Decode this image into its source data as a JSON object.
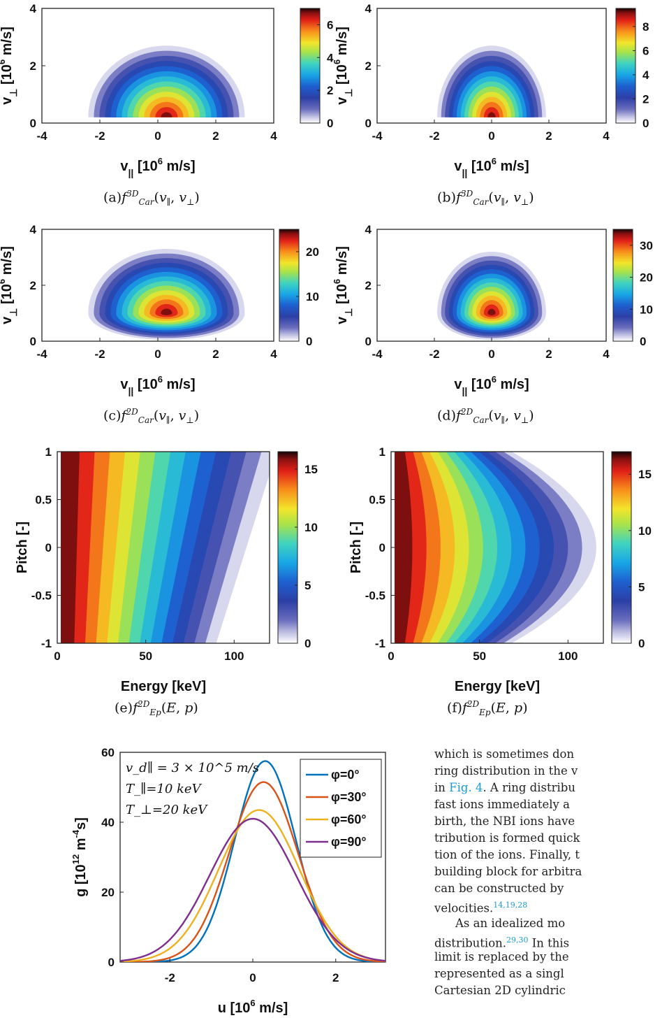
{
  "chart_data": [
    {
      "id": "a",
      "type": "heatmap",
      "caption": "(a)f_Car^3D(v_∥, v_⊥)",
      "xlabel": "v_|| [10^6 m/s]",
      "ylabel": "v_⊥ [10^6 m/s]",
      "xlim": [
        -4,
        4
      ],
      "ylim": [
        0,
        4
      ],
      "xticks": [
        "-4",
        "-2",
        "0",
        "2",
        "4"
      ],
      "yticks": [
        "0",
        "2",
        "4"
      ],
      "colorbar": {
        "ticks": [
          "0",
          "2",
          "4",
          "6"
        ],
        "range": [
          0,
          7
        ]
      },
      "shape": "semicircle",
      "peak": {
        "x": 0.3,
        "y": 0.2,
        "value": 7
      },
      "extent": {
        "left": -2.4,
        "right": 3.0,
        "top": 2.7
      }
    },
    {
      "id": "b",
      "type": "heatmap",
      "caption": "(b)f_Car^3D(v_∥, v_⊥)",
      "xlabel": "v_|| [10^6 m/s]",
      "ylabel": "v_⊥ [10^6 m/s]",
      "xlim": [
        -4,
        4
      ],
      "ylim": [
        0,
        4
      ],
      "xticks": [
        "-4",
        "-2",
        "0",
        "2",
        "4"
      ],
      "yticks": [
        "0",
        "2",
        "4"
      ],
      "colorbar": {
        "ticks": [
          "0",
          "2",
          "4",
          "6",
          "8"
        ],
        "range": [
          0,
          9.5
        ]
      },
      "shape": "semicircle",
      "peak": {
        "x": 0.0,
        "y": 0.2,
        "value": 9.5
      },
      "extent": {
        "left": -1.9,
        "right": 1.9,
        "top": 2.7
      }
    },
    {
      "id": "c",
      "type": "heatmap",
      "caption": "(c)f_Car^2D(v_∥, v_⊥)",
      "xlabel": "v_|| [10^6 m/s]",
      "ylabel": "v_⊥ [10^6 m/s]",
      "xlim": [
        -4,
        4
      ],
      "ylim": [
        0,
        4
      ],
      "xticks": [
        "-4",
        "-2",
        "0",
        "2",
        "4"
      ],
      "yticks": [
        "0",
        "2",
        "4"
      ],
      "colorbar": {
        "ticks": [
          "0",
          "10",
          "20"
        ],
        "range": [
          0,
          25
        ]
      },
      "shape": "dome",
      "peak": {
        "x": 0.3,
        "y": 1.0,
        "value": 25
      },
      "extent": {
        "left": -2.4,
        "right": 3.0,
        "top": 3.3
      }
    },
    {
      "id": "d",
      "type": "heatmap",
      "caption": "(d)f_Car^2D(v_∥, v_⊥)",
      "xlabel": "v_|| [10^6 m/s]",
      "ylabel": "v_⊥ [10^6 m/s]",
      "xlim": [
        -4,
        4
      ],
      "ylim": [
        0,
        4
      ],
      "xticks": [
        "-4",
        "-2",
        "0",
        "2",
        "4"
      ],
      "yticks": [
        "0",
        "2",
        "4"
      ],
      "colorbar": {
        "ticks": [
          "0",
          "10",
          "20",
          "30"
        ],
        "range": [
          0,
          35
        ]
      },
      "shape": "dome",
      "peak": {
        "x": 0.0,
        "y": 1.0,
        "value": 35
      },
      "extent": {
        "left": -1.9,
        "right": 1.9,
        "top": 3.2
      }
    },
    {
      "id": "e",
      "type": "heatmap",
      "caption": "(e)f_Ep^2D(E, p)",
      "xlabel": "Energy [keV]",
      "ylabel": "Pitch [-]",
      "xlim": [
        0,
        120
      ],
      "ylim": [
        -1,
        1
      ],
      "xticks": [
        "0",
        "50",
        "100"
      ],
      "yticks": [
        "-1",
        "-0.5",
        "0",
        "0.5",
        "1"
      ],
      "colorbar": {
        "ticks": [
          "0",
          "5",
          "10",
          "15"
        ],
        "range": [
          0,
          16.5
        ]
      },
      "shape": "energy-pitch-tilted",
      "peak": {
        "x": 14,
        "y": 1.0,
        "value": 16.5
      }
    },
    {
      "id": "f",
      "type": "heatmap",
      "caption": "(f)f_Ep^2D(E, p)",
      "xlabel": "Energy [keV]",
      "ylabel": "Pitch [-]",
      "xlim": [
        0,
        120
      ],
      "ylim": [
        -1,
        1
      ],
      "xticks": [
        "0",
        "50",
        "100"
      ],
      "yticks": [
        "-1",
        "-0.5",
        "0",
        "0.5",
        "1"
      ],
      "colorbar": {
        "ticks": [
          "0",
          "5",
          "10",
          "15"
        ],
        "range": [
          0,
          17
        ]
      },
      "shape": "energy-pitch-symmetric",
      "peak": {
        "x": 10,
        "y": 0.0,
        "value": 17
      }
    },
    {
      "id": "g",
      "type": "line",
      "xlabel": "u [10^6 m/s]",
      "ylabel": "g [10^12 m^-4 s]",
      "xlim": [
        -3.2,
        3.2
      ],
      "ylim": [
        0,
        60
      ],
      "xticks": [
        "-2",
        "0",
        "2"
      ],
      "yticks": [
        "0",
        "20",
        "40",
        "60"
      ],
      "annotations": [
        "v_d∥ = 3 × 10^5 m/s",
        "T_∥=10 keV",
        "T_⊥=20 keV"
      ],
      "legend_position": "top-right",
      "series": [
        {
          "name": "φ=0°",
          "color": "#0072bd",
          "peak_x": 0.3,
          "peak_y": 57.5,
          "sigma": 0.74
        },
        {
          "name": "φ=30°",
          "color": "#d95319",
          "peak_x": 0.26,
          "peak_y": 51.5,
          "sigma": 0.83
        },
        {
          "name": "φ=60°",
          "color": "#edb120",
          "peak_x": 0.15,
          "peak_y": 43.5,
          "sigma": 0.98
        },
        {
          "name": "φ=90°",
          "color": "#7e2f8e",
          "peak_x": 0.0,
          "peak_y": 41.0,
          "sigma": 1.04
        }
      ]
    }
  ],
  "body_text": {
    "line1": "which is sometimes don",
    "line2": "ring distribution in the v",
    "line3_pre": "in ",
    "line3_ref": "Fig. 4",
    "line3_post": ". A ring distribu",
    "line4": "fast ions immediately a",
    "line5": "birth, the NBI ions have",
    "line6": "tribution is formed quick",
    "line7": "tion of the ions. Finally, t",
    "line8": "building block for arbitra",
    "line9": "can be constructed by",
    "line10": "velocities.",
    "line10_sup": "14,19,28",
    "line11": "As an idealized mo",
    "line12": "distribution.",
    "line12_sup": "29,30",
    "line12_post": " In this",
    "line13": "limit is replaced by the",
    "line14": "represented as a singl",
    "line15": "Cartesian 2D cylindric"
  }
}
